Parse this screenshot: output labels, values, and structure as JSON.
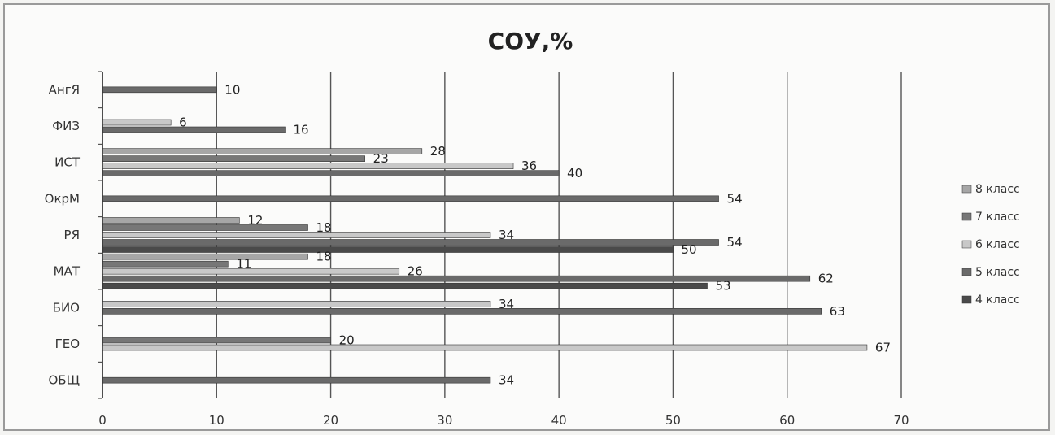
{
  "chart_data": {
    "type": "bar",
    "orientation": "horizontal",
    "title": "СОУ,%",
    "xlabel": "",
    "ylabel": "",
    "xlim": [
      0,
      70
    ],
    "xticks": [
      0,
      10,
      20,
      30,
      40,
      50,
      60,
      70
    ],
    "grid": true,
    "legend_position": "right",
    "categories": [
      "ОБЩ",
      "ГЕО",
      "БИО",
      "МАТ",
      "РЯ",
      "ОкрМ",
      "ИСТ",
      "ФИЗ",
      "АнгЯ"
    ],
    "series": [
      {
        "name": "4 класс",
        "color": "#4a4a4a",
        "values": [
          null,
          null,
          null,
          53,
          50,
          null,
          null,
          null,
          null
        ]
      },
      {
        "name": "5 класс",
        "color": "#6a6a6a",
        "values": [
          34,
          null,
          63,
          62,
          54,
          54,
          40,
          16,
          10
        ]
      },
      {
        "name": "6 класс",
        "color": "#c8c8c8",
        "values": [
          null,
          67,
          34,
          26,
          34,
          null,
          36,
          6,
          null
        ]
      },
      {
        "name": "7 класс",
        "color": "#777777",
        "values": [
          null,
          20,
          null,
          11,
          18,
          null,
          23,
          null,
          null
        ]
      },
      {
        "name": "8 класс",
        "color": "#a6a6a6",
        "values": [
          null,
          null,
          null,
          18,
          12,
          null,
          28,
          null,
          null
        ]
      }
    ]
  }
}
